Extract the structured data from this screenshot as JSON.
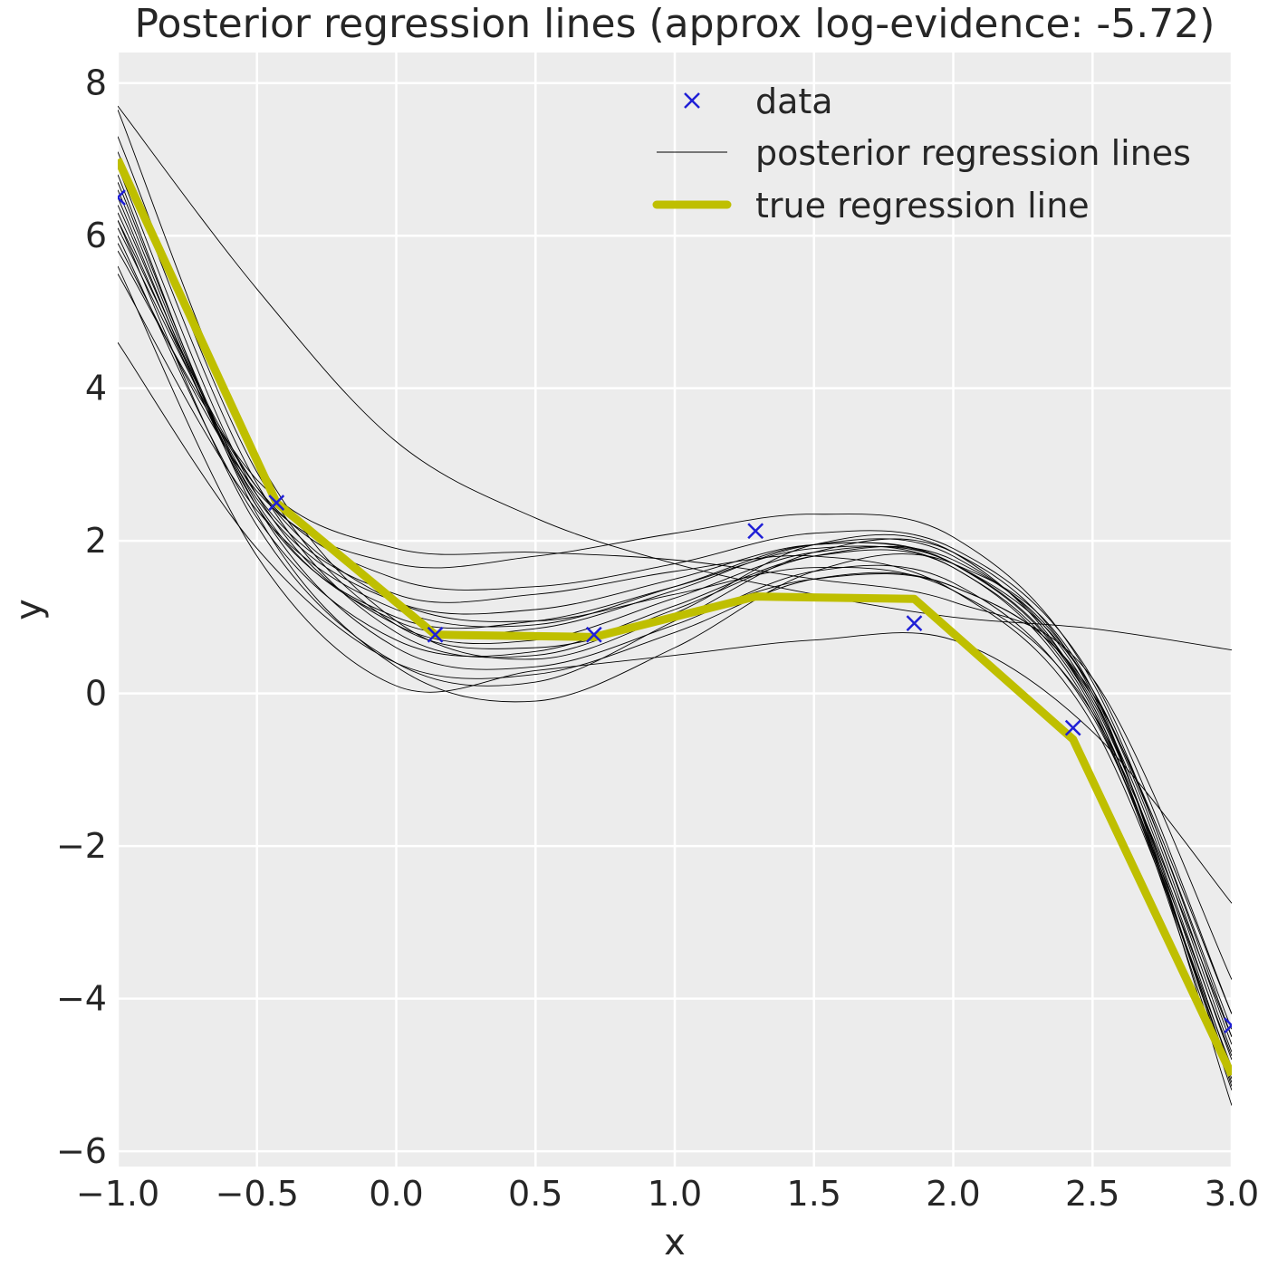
{
  "chart_data": {
    "type": "line",
    "title": "Posterior regression lines (approx log-evidence: -5.72)",
    "xlabel": "x",
    "ylabel": "y",
    "xlim": [
      -1.0,
      3.0
    ],
    "ylim": [
      -6.2,
      8.4
    ],
    "x_ticks": [
      -1.0,
      -0.5,
      0.0,
      0.5,
      1.0,
      1.5,
      2.0,
      2.5,
      3.0
    ],
    "x_tick_labels": [
      "−1.0",
      "−0.5",
      "0.0",
      "0.5",
      "1.0",
      "1.5",
      "2.0",
      "2.5",
      "3.0"
    ],
    "y_ticks": [
      -6,
      -4,
      -2,
      0,
      2,
      4,
      6,
      8
    ],
    "y_tick_labels": [
      "−6",
      "−4",
      "−2",
      "0",
      "2",
      "4",
      "6",
      "8"
    ],
    "grid": true,
    "legend_position": "top-right",
    "background_color": "#ececec",
    "series": [
      {
        "name": "data",
        "kind": "scatter",
        "marker": "x",
        "color": "#1f1fd6",
        "x": [
          -1.0,
          -0.43,
          0.14,
          0.71,
          1.29,
          1.86,
          2.43,
          3.0
        ],
        "y": [
          6.5,
          2.5,
          0.77,
          0.77,
          2.13,
          0.92,
          -0.45,
          -4.35
        ]
      },
      {
        "name": "posterior regression lines",
        "kind": "line-family",
        "color": "#000000",
        "x": [
          -1.0,
          -0.5,
          0.0,
          0.5,
          1.0,
          1.5,
          2.0,
          2.5,
          3.0
        ],
        "lines": [
          [
            7.65,
            3.1,
            0.95,
            0.45,
            1.05,
            1.95,
            1.85,
            -0.15,
            -5.1
          ],
          [
            7.1,
            2.75,
            0.8,
            0.5,
            1.1,
            1.8,
            1.75,
            0.05,
            -4.6
          ],
          [
            6.9,
            2.6,
            0.9,
            0.7,
            1.25,
            1.85,
            1.7,
            -0.1,
            -4.8
          ],
          [
            6.7,
            2.5,
            0.95,
            0.85,
            1.35,
            1.95,
            1.8,
            -0.05,
            -4.95
          ],
          [
            6.5,
            2.45,
            1.0,
            0.95,
            1.4,
            1.9,
            1.65,
            -0.2,
            -5.2
          ],
          [
            6.3,
            2.55,
            1.2,
            1.1,
            1.5,
            1.95,
            1.7,
            -0.15,
            -5.05
          ],
          [
            6.1,
            2.7,
            1.5,
            1.4,
            1.7,
            2.1,
            1.9,
            0.2,
            -4.2
          ],
          [
            5.9,
            2.65,
            1.7,
            1.8,
            2.1,
            2.35,
            2.05,
            0.15,
            -4.5
          ],
          [
            5.8,
            2.8,
            1.9,
            1.85,
            1.75,
            1.5,
            1.2,
            0.2,
            -3.75
          ],
          [
            5.5,
            2.4,
            1.1,
            0.9,
            1.4,
            1.95,
            1.7,
            0.05,
            -4.4
          ],
          [
            4.6,
            1.9,
            0.4,
            0.25,
            0.8,
            1.5,
            1.4,
            -0.05,
            -4.7
          ],
          [
            6.2,
            2.2,
            0.4,
            0.15,
            0.95,
            1.85,
            1.85,
            0.0,
            -5.15
          ],
          [
            6.8,
            2.35,
            0.35,
            -0.1,
            0.6,
            1.6,
            1.7,
            0.05,
            -5.4
          ],
          [
            7.3,
            2.9,
            0.9,
            0.6,
            1.0,
            1.5,
            1.4,
            0.0,
            -4.2
          ],
          [
            6.4,
            2.6,
            1.3,
            1.3,
            1.6,
            1.8,
            1.35,
            -0.4,
            -4.9
          ],
          [
            7.7,
            5.3,
            3.3,
            2.3,
            1.7,
            1.3,
            1.0,
            0.85,
            0.57
          ],
          [
            6.6,
            2.45,
            0.6,
            0.35,
            0.9,
            1.6,
            1.45,
            -0.3,
            -4.75
          ],
          [
            6.0,
            2.3,
            0.7,
            0.55,
            1.15,
            1.8,
            1.65,
            -0.25,
            -5.0
          ],
          [
            6.2,
            2.7,
            1.2,
            0.95,
            1.3,
            1.65,
            1.35,
            -0.25,
            -4.5
          ],
          [
            5.6,
            1.8,
            0.1,
            0.3,
            0.5,
            0.7,
            0.7,
            -0.5,
            -2.75
          ]
        ]
      },
      {
        "name": "true regression line",
        "kind": "line",
        "color": "#bfbf00",
        "x": [
          -1.0,
          -0.43,
          0.14,
          0.71,
          1.29,
          1.86,
          2.43,
          3.0
        ],
        "y": [
          7.0,
          2.5,
          0.77,
          0.74,
          1.27,
          1.24,
          -0.6,
          -5.0
        ]
      }
    ]
  }
}
